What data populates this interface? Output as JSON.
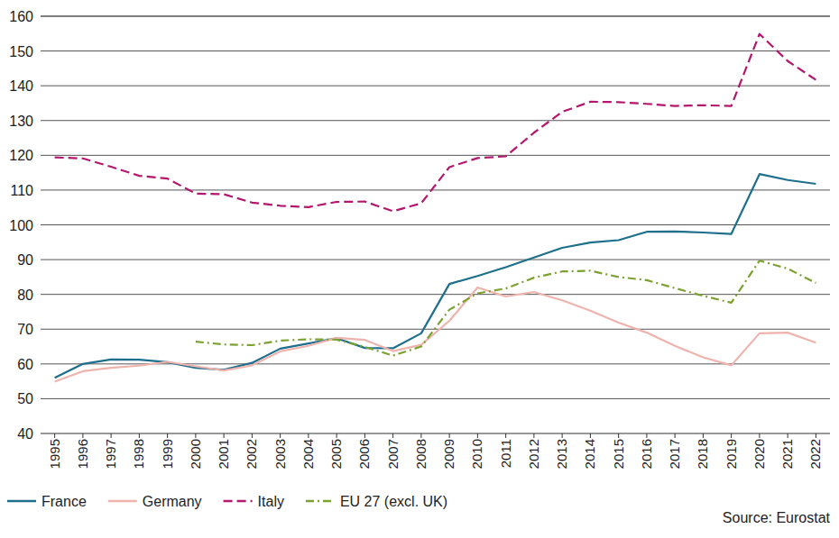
{
  "chart_data": {
    "type": "line",
    "categories": [
      "1995",
      "1996",
      "1997",
      "1998",
      "1999",
      "2000",
      "2001",
      "2002",
      "2003",
      "2004",
      "2005",
      "2006",
      "2007",
      "2008",
      "2009",
      "2010",
      "2011",
      "2012",
      "2013",
      "2014",
      "2015",
      "2016",
      "2017",
      "2018",
      "2019",
      "2020",
      "2021",
      "2022"
    ],
    "series": [
      {
        "name": "France",
        "color": "#1d6f8c",
        "line_style": "solid",
        "values": [
          56.0,
          60.0,
          61.3,
          61.2,
          60.5,
          58.9,
          58.3,
          60.3,
          64.4,
          65.9,
          67.4,
          64.6,
          64.5,
          68.8,
          83.0,
          85.3,
          87.8,
          90.6,
          93.4,
          94.9,
          95.6,
          98.0,
          98.1,
          97.8,
          97.4,
          114.6,
          112.9,
          111.8
        ]
      },
      {
        "name": "Germany",
        "color": "#efb3ad",
        "line_style": "solid",
        "values": [
          54.9,
          57.9,
          58.9,
          59.5,
          60.6,
          59.3,
          58.1,
          59.6,
          63.6,
          65.2,
          67.5,
          66.9,
          63.7,
          65.5,
          72.4,
          82.0,
          79.4,
          80.7,
          78.3,
          75.3,
          71.9,
          69.0,
          65.2,
          61.9,
          59.6,
          68.8,
          69.0,
          66.1
        ]
      },
      {
        "name": "Italy",
        "color": "#b3176e",
        "line_style": "dashed",
        "values": [
          119.4,
          119.1,
          116.7,
          114.1,
          113.3,
          109.0,
          108.8,
          106.4,
          105.5,
          105.1,
          106.6,
          106.7,
          103.9,
          106.2,
          116.6,
          119.2,
          119.7,
          126.5,
          132.5,
          135.4,
          135.3,
          134.8,
          134.2,
          134.4,
          134.2,
          154.9,
          147.1,
          141.7
        ]
      },
      {
        "name": "EU 27 (excl. UK)",
        "color": "#7ba131",
        "line_style": "dashdot",
        "values": [
          null,
          null,
          null,
          null,
          null,
          66.4,
          65.6,
          65.4,
          66.7,
          67.1,
          67.0,
          64.9,
          62.4,
          65.0,
          75.6,
          80.3,
          81.7,
          84.8,
          86.6,
          86.8,
          85.0,
          84.1,
          81.8,
          79.6,
          77.6,
          89.7,
          87.4,
          83.3
        ]
      }
    ],
    "ylim": [
      40,
      160
    ],
    "yticks": [
      40,
      50,
      60,
      70,
      80,
      90,
      100,
      110,
      120,
      130,
      140,
      150,
      160
    ],
    "grid": true,
    "legend": "bottom",
    "annotations": [
      "Source: Eurostat"
    ]
  }
}
